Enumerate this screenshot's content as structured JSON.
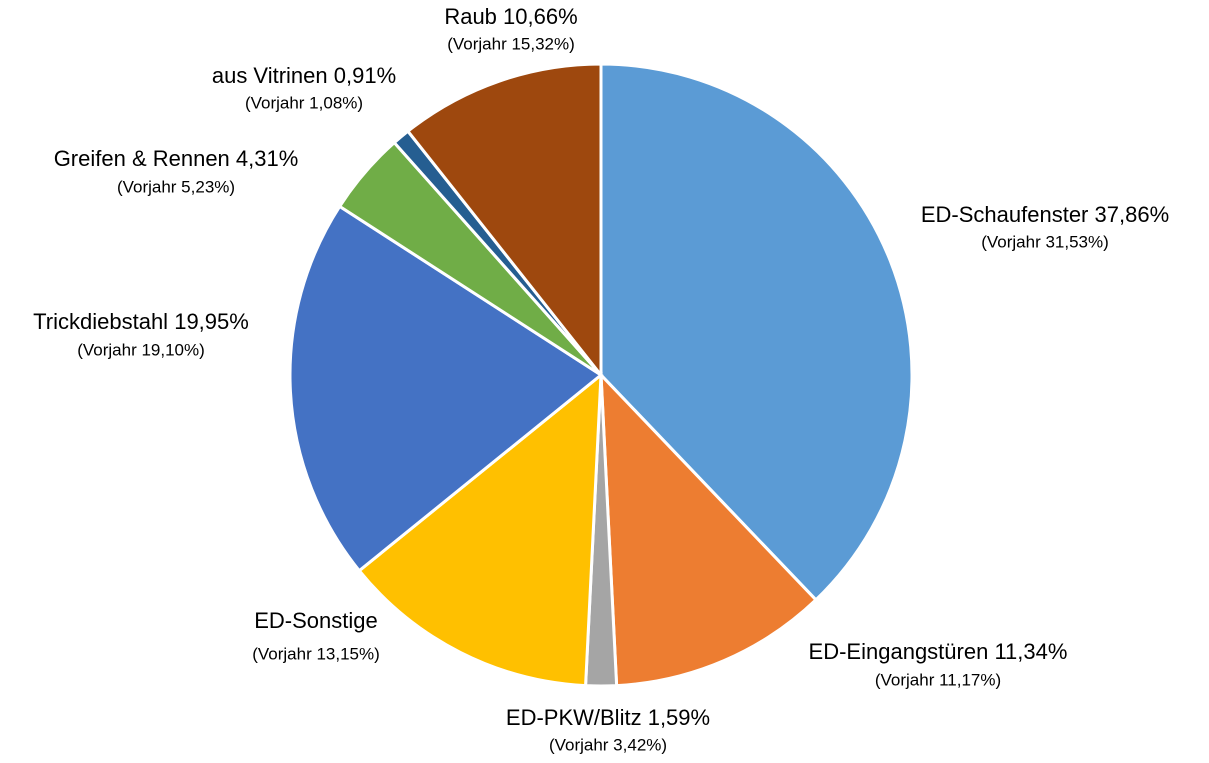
{
  "chart_data": {
    "type": "pie",
    "categories": [
      "ED-Schaufenster",
      "ED-Eingangstüren",
      "ED-PKW/Blitz",
      "ED-Sonstige",
      "Trickdiebstahl",
      "Greifen & Rennen",
      "aus Vitrinen",
      "Raub"
    ],
    "values": [
      37.86,
      11.34,
      1.59,
      13.38,
      19.95,
      4.31,
      0.91,
      10.66
    ],
    "value_labels": [
      "37,86%",
      "11,34%",
      "1,59%",
      null,
      "19,95%",
      "4,31%",
      "0,91%",
      "10,66%"
    ],
    "previous_labels": [
      "(Vorjahr 31,53%)",
      "(Vorjahr 11,17%)",
      "(Vorjahr 3,42%)",
      "(Vorjahr 13,15%)",
      "(Vorjahr 19,10%)",
      "(Vorjahr 5,23%)",
      "(Vorjahr 1,08%)",
      "(Vorjahr 15,32%)"
    ],
    "colors": [
      "#5b9bd5",
      "#ed7d31",
      "#a5a5a5",
      "#ffc000",
      "#4472c4",
      "#70ad47",
      "#255e91",
      "#9e480e"
    ]
  }
}
